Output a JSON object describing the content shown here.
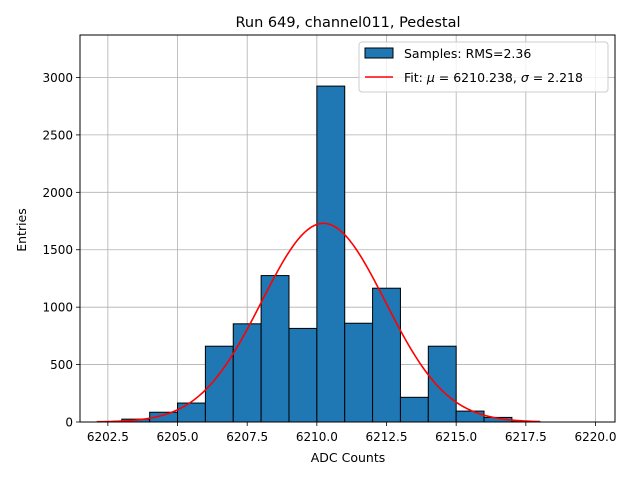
{
  "chart_data": {
    "type": "bar",
    "title": "Run 649, channel011, Pedestal",
    "xlabel": "ADC Counts",
    "ylabel": "Entries",
    "xlim": [
      6201.5,
      6220.7
    ],
    "ylim": [
      0,
      3370
    ],
    "xticks": [
      6202.5,
      6205.0,
      6207.5,
      6210.0,
      6212.5,
      6215.0,
      6217.5,
      6220.0
    ],
    "xtick_labels": [
      "6202.5",
      "6205.0",
      "6207.5",
      "6210.0",
      "6212.5",
      "6215.0",
      "6217.5",
      "6220.0"
    ],
    "yticks": [
      0,
      500,
      1000,
      1500,
      2000,
      2500,
      3000
    ],
    "ytick_labels": [
      "0",
      "500",
      "1000",
      "1500",
      "2000",
      "2500",
      "3000"
    ],
    "grid": true,
    "legend_position": "upper-right",
    "bar_color": "#1f77b4",
    "fit_color": "#ff0000",
    "bins": [
      {
        "x0": 6203,
        "x1": 6204,
        "value": 25
      },
      {
        "x0": 6204,
        "x1": 6205,
        "value": 85
      },
      {
        "x0": 6205,
        "x1": 6206,
        "value": 165
      },
      {
        "x0": 6206,
        "x1": 6207,
        "value": 660
      },
      {
        "x0": 6207,
        "x1": 6208,
        "value": 855
      },
      {
        "x0": 6208,
        "x1": 6209,
        "value": 1275
      },
      {
        "x0": 6209,
        "x1": 6210,
        "value": 815
      },
      {
        "x0": 6210,
        "x1": 6211,
        "value": 2925
      },
      {
        "x0": 6211,
        "x1": 6212,
        "value": 860
      },
      {
        "x0": 6212,
        "x1": 6213,
        "value": 1165
      },
      {
        "x0": 6213,
        "x1": 6214,
        "value": 215
      },
      {
        "x0": 6214,
        "x1": 6215,
        "value": 660
      },
      {
        "x0": 6215,
        "x1": 6216,
        "value": 95
      },
      {
        "x0": 6216,
        "x1": 6217,
        "value": 40
      },
      {
        "x0": 6217,
        "x1": 6218,
        "value": 5
      }
    ],
    "fit": {
      "mu": 6210.238,
      "sigma": 2.218,
      "amplitude": 1730,
      "x_start": 6202.1,
      "x_end": 6218.0
    },
    "legend": {
      "samples": "Samples: RMS=2.36",
      "fit_prefix": "Fit: ",
      "fit_mu_symbol": "μ",
      "fit_mu_value": " = 6210.238, ",
      "fit_sigma_symbol": "σ",
      "fit_sigma_value": " = 2.218"
    }
  }
}
